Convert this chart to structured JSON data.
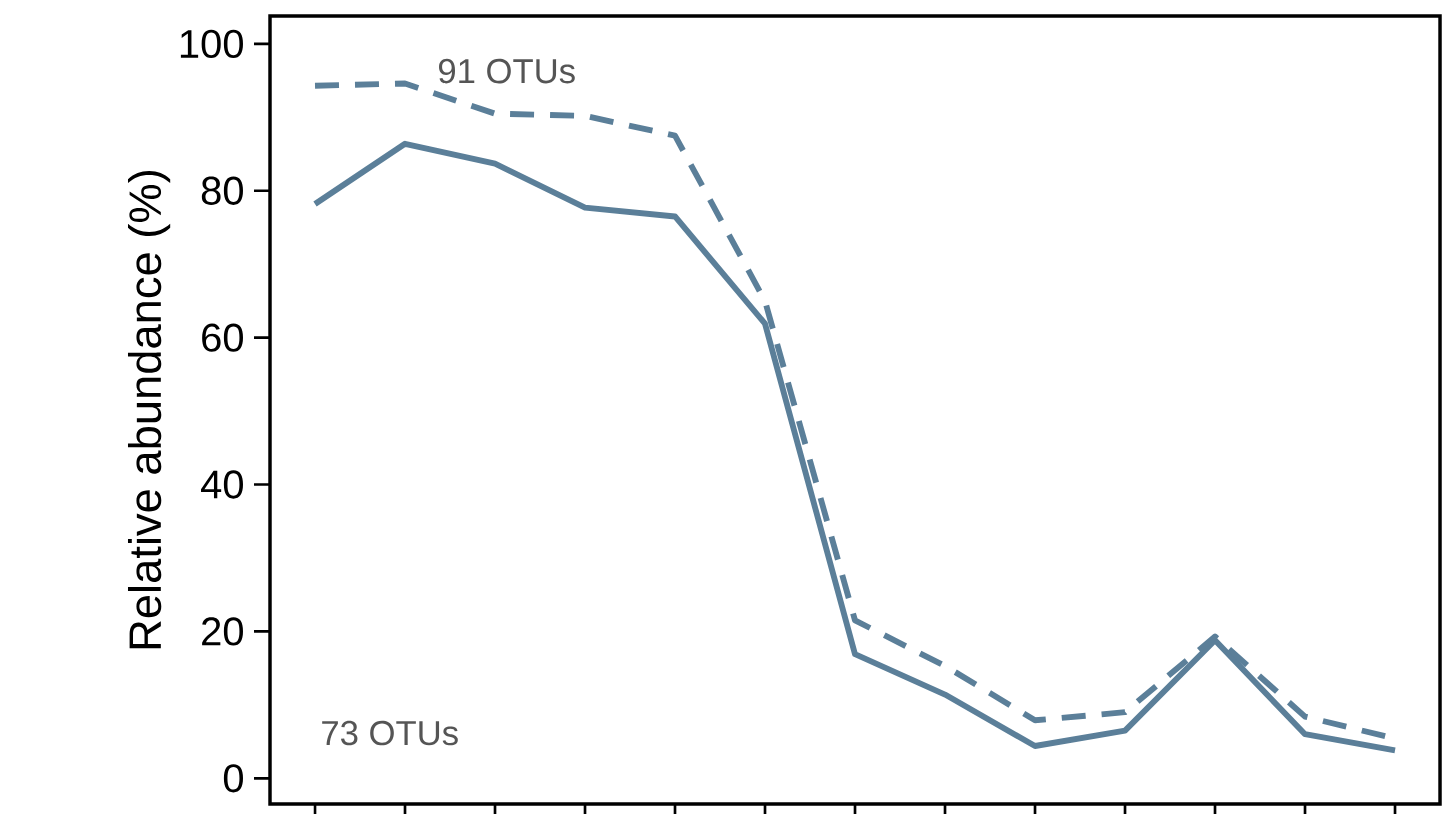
{
  "chart_data": {
    "type": "line",
    "ylabel": "Relative abundance (%)",
    "categories": [
      null,
      null,
      null,
      null,
      null,
      null,
      null,
      null,
      null,
      null,
      null,
      null,
      null
    ],
    "series": [
      {
        "color": "#5b7f99",
        "line_style": "solid",
        "values": [
          78.2,
          86.4,
          83.7,
          77.7,
          76.5,
          61.9,
          16.9,
          11.4,
          4.4,
          6.5,
          18.8,
          6.0,
          3.8
        ]
      },
      {
        "color": "#5b7f99",
        "line_style": "dashed",
        "values": [
          94.3,
          94.6,
          90.5,
          90.2,
          87.5,
          65.0,
          21.5,
          15.3,
          7.9,
          9.0,
          19.3,
          8.4,
          5.4
        ]
      }
    ],
    "annotations": [
      "91 OTUs",
      "73 OTUs"
    ],
    "ylim": [
      -3.5,
      103.8
    ],
    "yticks": [
      0,
      20,
      40,
      60,
      80,
      100
    ],
    "tick_labels": "y",
    "grid": false,
    "marker": "none"
  }
}
